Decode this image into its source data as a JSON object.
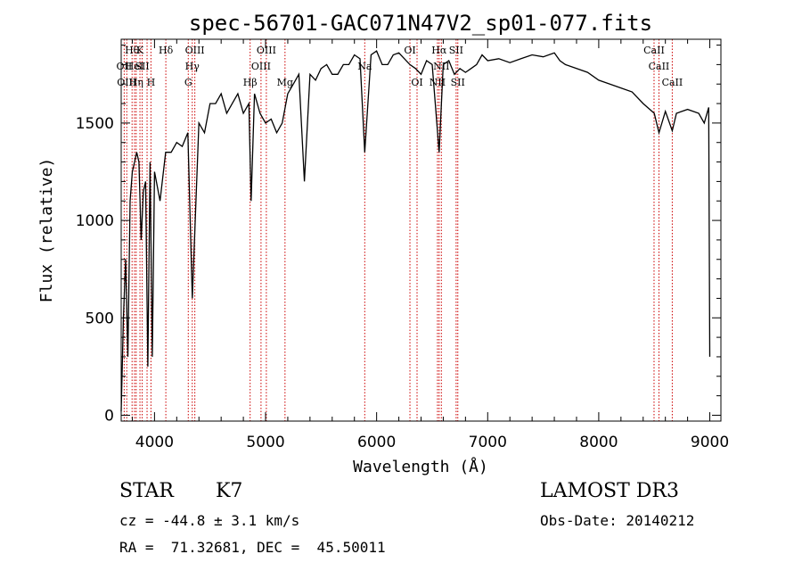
{
  "chart_data": {
    "type": "line",
    "title": "spec-56701-GAC071N47V2_sp01-077.fits",
    "xlabel": "Wavelength (Å)",
    "ylabel": "Flux (relative)",
    "xlim": [
      3700,
      9100
    ],
    "ylim": [
      -30,
      1930
    ],
    "xticks": [
      4000,
      5000,
      6000,
      7000,
      8000,
      9000
    ],
    "yticks": [
      0,
      500,
      1000,
      1500
    ],
    "series": [
      {
        "name": "flux",
        "x": [
          3700,
          3720,
          3740,
          3760,
          3780,
          3800,
          3820,
          3840,
          3860,
          3880,
          3900,
          3920,
          3940,
          3960,
          3980,
          4000,
          4050,
          4100,
          4150,
          4200,
          4250,
          4300,
          4340,
          4400,
          4450,
          4500,
          4550,
          4600,
          4650,
          4700,
          4750,
          4800,
          4850,
          4870,
          4900,
          4950,
          5000,
          5050,
          5100,
          5150,
          5200,
          5250,
          5300,
          5350,
          5400,
          5450,
          5500,
          5550,
          5600,
          5650,
          5700,
          5750,
          5800,
          5850,
          5893,
          5950,
          6000,
          6050,
          6100,
          6150,
          6200,
          6250,
          6300,
          6350,
          6400,
          6450,
          6500,
          6563,
          6600,
          6650,
          6700,
          6750,
          6800,
          6850,
          6900,
          6950,
          7000,
          7100,
          7200,
          7300,
          7400,
          7500,
          7600,
          7650,
          7700,
          7800,
          7900,
          8000,
          8100,
          8200,
          8300,
          8400,
          8500,
          8542,
          8600,
          8662,
          8700,
          8800,
          8900,
          8950,
          8990,
          9000
        ],
        "y": [
          20,
          500,
          800,
          300,
          1100,
          1250,
          1300,
          1350,
          1300,
          900,
          1150,
          1200,
          250,
          1300,
          300,
          1250,
          1100,
          1350,
          1350,
          1400,
          1380,
          1450,
          600,
          1500,
          1450,
          1600,
          1600,
          1650,
          1550,
          1600,
          1650,
          1550,
          1600,
          1100,
          1650,
          1550,
          1500,
          1520,
          1450,
          1500,
          1650,
          1700,
          1750,
          1200,
          1750,
          1720,
          1780,
          1800,
          1750,
          1750,
          1800,
          1800,
          1850,
          1830,
          1350,
          1850,
          1870,
          1800,
          1800,
          1850,
          1860,
          1830,
          1800,
          1780,
          1750,
          1820,
          1800,
          1350,
          1800,
          1820,
          1750,
          1780,
          1760,
          1780,
          1800,
          1850,
          1820,
          1830,
          1810,
          1830,
          1850,
          1840,
          1860,
          1820,
          1800,
          1780,
          1760,
          1720,
          1700,
          1680,
          1660,
          1600,
          1550,
          1450,
          1560,
          1460,
          1550,
          1570,
          1550,
          1500,
          1580,
          300
        ]
      }
    ],
    "lines": [
      {
        "wl": 3727,
        "label": "OII",
        "tier": 1
      },
      {
        "wl": 3750,
        "label": "OIII",
        "tier": 2
      },
      {
        "wl": 3798,
        "label": "Hθ",
        "tier": 0
      },
      {
        "wl": 3820,
        "label": "HeI",
        "tier": 1
      },
      {
        "wl": 3835,
        "label": "Hη",
        "tier": 2
      },
      {
        "wl": 3869,
        "label": "K",
        "tier": 0
      },
      {
        "wl": 3889,
        "label": "SII",
        "tier": 1
      },
      {
        "wl": 3933,
        "label": "",
        "tier": 0
      },
      {
        "wl": 3968,
        "label": "H",
        "tier": 2
      },
      {
        "wl": 4102,
        "label": "Hδ",
        "tier": 0
      },
      {
        "wl": 4340,
        "label": "Hγ",
        "tier": 1
      },
      {
        "wl": 4363,
        "label": "OIII",
        "tier": 0
      },
      {
        "wl": 4304,
        "label": "G",
        "tier": 2
      },
      {
        "wl": 4861,
        "label": "Hβ",
        "tier": 2
      },
      {
        "wl": 4959,
        "label": "OIII",
        "tier": 1
      },
      {
        "wl": 5007,
        "label": "OIII",
        "tier": 0
      },
      {
        "wl": 5175,
        "label": "Mg",
        "tier": 2
      },
      {
        "wl": 5893,
        "label": "Na",
        "tier": 1
      },
      {
        "wl": 6300,
        "label": "OI",
        "tier": 0
      },
      {
        "wl": 6364,
        "label": "OI",
        "tier": 2
      },
      {
        "wl": 6548,
        "label": "NII",
        "tier": 2
      },
      {
        "wl": 6563,
        "label": "Hα",
        "tier": 0
      },
      {
        "wl": 6583,
        "label": "NII",
        "tier": 1
      },
      {
        "wl": 6716,
        "label": "SII",
        "tier": 0
      },
      {
        "wl": 6731,
        "label": "SII",
        "tier": 2
      },
      {
        "wl": 8498,
        "label": "CaII",
        "tier": 0
      },
      {
        "wl": 8542,
        "label": "CaII",
        "tier": 1
      },
      {
        "wl": 8662,
        "label": "CaII",
        "tier": 2
      }
    ]
  },
  "info": {
    "class_label": "STAR",
    "subclass_label": "K7",
    "survey_label": "LAMOST DR3",
    "redshift_text": "cz = -44.8 ± 3.1 km/s",
    "obs_date_text": "Obs-Date: 20140212",
    "coords_text": "RA =  71.32681, DEC =  45.50011"
  },
  "colors": {
    "spectrum": "#000000",
    "line_marker": "#cc0000",
    "axis": "#000000"
  }
}
